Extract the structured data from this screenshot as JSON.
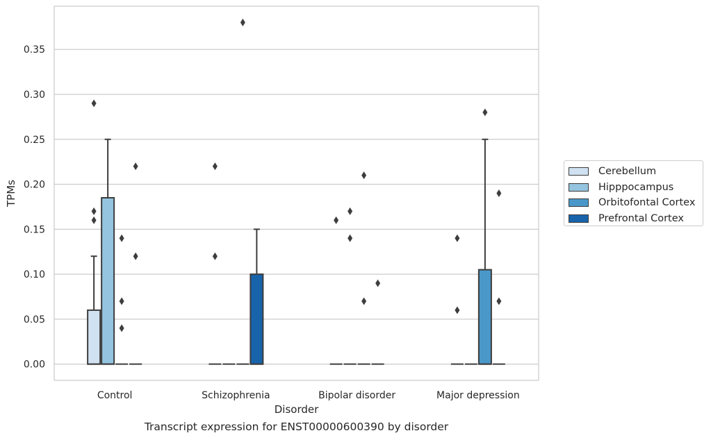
{
  "chart_data": {
    "type": "box",
    "xlabel": "Disorder",
    "ylabel": "TPMs",
    "caption": "Transcript expression for ENST00000600390 by disorder",
    "ylim": [
      -0.018,
      0.398
    ],
    "yticks": [
      "0.00",
      "0.05",
      "0.10",
      "0.15",
      "0.20",
      "0.25",
      "0.30",
      "0.35"
    ],
    "categories": [
      "Control",
      "Schizophrenia",
      "Bipolar disorder",
      "Major depression"
    ],
    "grid": true,
    "legend_position": "right",
    "series": [
      {
        "name": "Cerebellum",
        "color": "#d0e1f2"
      },
      {
        "name": "Hipppocampus",
        "color": "#94c4df"
      },
      {
        "name": "Orbitofontal Cortex",
        "color": "#4a98c9"
      },
      {
        "name": "Prefrontal Cortex",
        "color": "#1764ab"
      }
    ],
    "boxes": [
      {
        "category": 0,
        "series": 0,
        "q1": 0,
        "median": 0,
        "q3": 0.06,
        "whisker_low": 0,
        "whisker_high": 0.12,
        "outliers": [
          0.29,
          0.17,
          0.16
        ]
      },
      {
        "category": 0,
        "series": 1,
        "q1": 0,
        "median": 0,
        "q3": 0.185,
        "whisker_low": 0,
        "whisker_high": 0.25,
        "outliers": []
      },
      {
        "category": 0,
        "series": 2,
        "q1": 0,
        "median": 0,
        "q3": 0,
        "whisker_low": 0,
        "whisker_high": 0,
        "outliers": [
          0.14,
          0.07,
          0.04
        ]
      },
      {
        "category": 0,
        "series": 3,
        "q1": 0,
        "median": 0,
        "q3": 0,
        "whisker_low": 0,
        "whisker_high": 0,
        "outliers": [
          0.22,
          0.12
        ]
      },
      {
        "category": 1,
        "series": 0,
        "q1": 0,
        "median": 0,
        "q3": 0,
        "whisker_low": 0,
        "whisker_high": 0,
        "outliers": [
          0.22,
          0.12
        ]
      },
      {
        "category": 1,
        "series": 1,
        "q1": 0,
        "median": 0,
        "q3": 0,
        "whisker_low": 0,
        "whisker_high": 0,
        "outliers": []
      },
      {
        "category": 1,
        "series": 2,
        "q1": 0,
        "median": 0,
        "q3": 0,
        "whisker_low": 0,
        "whisker_high": 0,
        "outliers": [
          0.38
        ]
      },
      {
        "category": 1,
        "series": 3,
        "q1": 0,
        "median": 0,
        "q3": 0.1,
        "whisker_low": 0,
        "whisker_high": 0.15,
        "outliers": []
      },
      {
        "category": 2,
        "series": 0,
        "q1": 0,
        "median": 0,
        "q3": 0,
        "whisker_low": 0,
        "whisker_high": 0,
        "outliers": [
          0.16
        ]
      },
      {
        "category": 2,
        "series": 1,
        "q1": 0,
        "median": 0,
        "q3": 0,
        "whisker_low": 0,
        "whisker_high": 0,
        "outliers": [
          0.17,
          0.14
        ]
      },
      {
        "category": 2,
        "series": 2,
        "q1": 0,
        "median": 0,
        "q3": 0,
        "whisker_low": 0,
        "whisker_high": 0,
        "outliers": [
          0.21,
          0.07
        ]
      },
      {
        "category": 2,
        "series": 3,
        "q1": 0,
        "median": 0,
        "q3": 0,
        "whisker_low": 0,
        "whisker_high": 0,
        "outliers": [
          0.09
        ]
      },
      {
        "category": 3,
        "series": 0,
        "q1": 0,
        "median": 0,
        "q3": 0,
        "whisker_low": 0,
        "whisker_high": 0,
        "outliers": [
          0.14,
          0.06
        ]
      },
      {
        "category": 3,
        "series": 1,
        "q1": 0,
        "median": 0,
        "q3": 0,
        "whisker_low": 0,
        "whisker_high": 0,
        "outliers": []
      },
      {
        "category": 3,
        "series": 2,
        "q1": 0,
        "median": 0,
        "q3": 0.105,
        "whisker_low": 0,
        "whisker_high": 0.25,
        "outliers": [
          0.28
        ]
      },
      {
        "category": 3,
        "series": 3,
        "q1": 0,
        "median": 0,
        "q3": 0,
        "whisker_low": 0,
        "whisker_high": 0,
        "outliers": [
          0.19,
          0.07
        ]
      }
    ]
  }
}
